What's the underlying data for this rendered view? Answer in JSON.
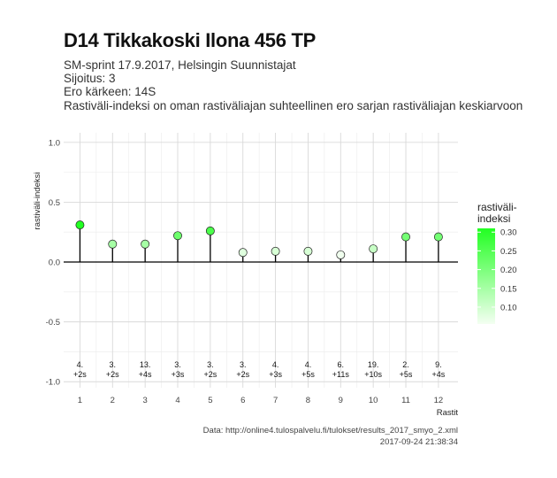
{
  "title": "D14 Tikkakoski Ilona 456 TP",
  "subtitle_lines": [
    "SM-sprint 17.9.2017, Helsingin Suunnistajat",
    "Sijoitus: 3",
    "Ero kärkeen: 14S",
    "Rastiväli-indeksi on oman rastiväliajan suhteellinen ero sarjan rastiväliajan keskiarvoon"
  ],
  "caption_lines": [
    "Data: http://online4.tulospalvelu.fi/tulokset/results_2017_smyo_2.xml",
    "2017-09-24 21:38:34"
  ],
  "chart_data": {
    "type": "lollipop",
    "xlabel": "Rastit",
    "ylabel": "rastiväli-indeksi",
    "x": [
      1,
      2,
      3,
      4,
      5,
      6,
      7,
      8,
      9,
      10,
      11,
      12
    ],
    "values": [
      0.31,
      0.15,
      0.15,
      0.22,
      0.26,
      0.08,
      0.09,
      0.09,
      0.06,
      0.11,
      0.21,
      0.21
    ],
    "ranks": [
      "4.",
      "3.",
      "13.",
      "3.",
      "3.",
      "3.",
      "4.",
      "4.",
      "6.",
      "19.",
      "2.",
      "9."
    ],
    "behind": [
      "+2s",
      "+2s",
      "+4s",
      "+3s",
      "+2s",
      "+2s",
      "+3s",
      "+5s",
      "+11s",
      "+10s",
      "+5s",
      "+4s"
    ],
    "xlim": [
      0.5,
      12.6
    ],
    "ylim": [
      -1.05,
      1.08
    ],
    "yticks": [
      -1.0,
      -0.5,
      0.0,
      0.5,
      1.0
    ],
    "ytick_labels": [
      "-1.0",
      "-0.5",
      "0.0",
      "0.5",
      "1.0"
    ],
    "xtick_labels": [
      "1",
      "2",
      "3",
      "4",
      "5",
      "6",
      "7",
      "8",
      "9",
      "10",
      "11",
      "12"
    ],
    "grid": true,
    "legend": {
      "title_lines": [
        "rastiväli-",
        "indeksi"
      ],
      "ticks": [
        0.3,
        0.25,
        0.2,
        0.15,
        0.1
      ],
      "tick_labels": [
        "0.30",
        "0.25",
        "0.20",
        "0.15",
        "0.10"
      ],
      "range": [
        0.055,
        0.31
      ],
      "color_low": "#f4fff2",
      "color_high": "#22ff22",
      "position": "right"
    }
  }
}
